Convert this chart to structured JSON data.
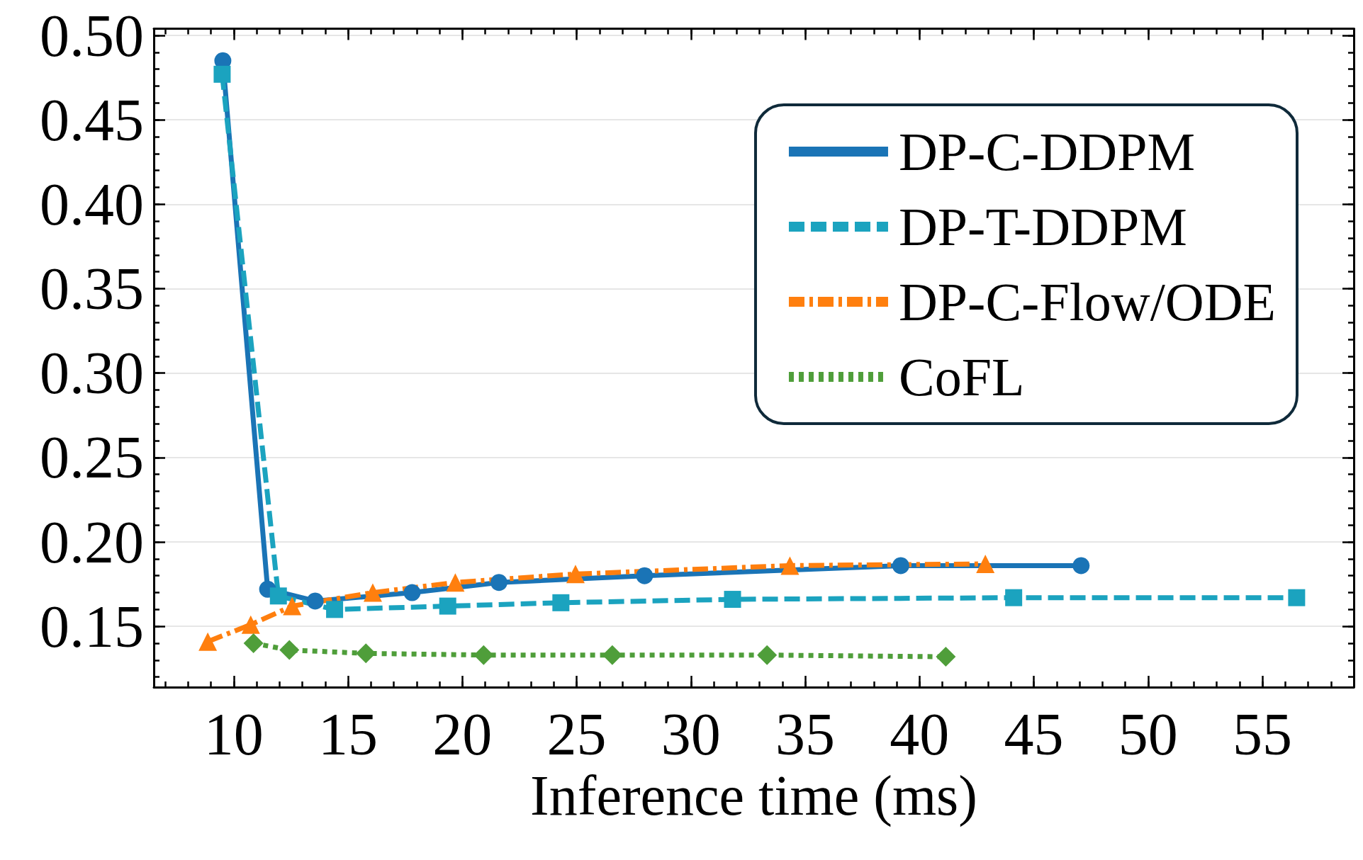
{
  "chart_data": {
    "type": "line",
    "xlabel": "Inference time (ms)",
    "xlim": [
      6.5,
      59
    ],
    "xticks": [
      10,
      15,
      20,
      25,
      30,
      35,
      40,
      45,
      50,
      55
    ],
    "ylim": [
      0.114,
      0.504
    ],
    "yticks": [
      0.15,
      {
        "value": 0.2,
        "label": "0.20"
      },
      0.25,
      {
        "value": 0.3,
        "label": "0.30"
      },
      0.35,
      {
        "value": 0.4,
        "label": "0.40"
      },
      0.45,
      {
        "value": 0.5,
        "label": "0.50"
      }
    ],
    "grid": "y",
    "legend": "top right",
    "series": [
      {
        "name": "DP-C-DDPM",
        "color": "#1a74b6",
        "line_style": "solid",
        "marker": "circle",
        "x": [
          9.52,
          11.48,
          13.56,
          17.8,
          21.6,
          27.97,
          39.18,
          47.07
        ],
        "values": [
          0.485,
          0.172,
          0.165,
          0.17,
          0.176,
          0.18,
          0.186,
          0.186
        ]
      },
      {
        "name": "DP-T-DDPM",
        "color": "#1ba3bf",
        "line_style": "dashed",
        "marker": "square",
        "x": [
          9.49,
          11.95,
          14.41,
          19.36,
          24.31,
          31.82,
          44.12,
          56.5
        ],
        "values": [
          0.477,
          0.168,
          0.16,
          0.162,
          0.164,
          0.166,
          0.167,
          0.167
        ]
      },
      {
        "name": "DP-C-Flow/ODE",
        "color": "#ff7f0e",
        "line_style": "dashdot",
        "marker": "triangle",
        "x": [
          8.86,
          10.74,
          12.55,
          16.08,
          19.69,
          24.95,
          34.33,
          42.88
        ],
        "values": [
          0.141,
          0.151,
          0.162,
          0.17,
          0.176,
          0.181,
          0.186,
          0.187
        ]
      },
      {
        "name": "CoFL",
        "color": "#4f9e3a",
        "line_style": "dotted",
        "marker": "diamond",
        "x": [
          10.86,
          12.43,
          15.78,
          20.93,
          26.56,
          33.33,
          41.15
        ],
        "values": [
          0.14,
          0.136,
          0.134,
          0.133,
          0.133,
          0.133,
          0.132
        ]
      }
    ]
  }
}
